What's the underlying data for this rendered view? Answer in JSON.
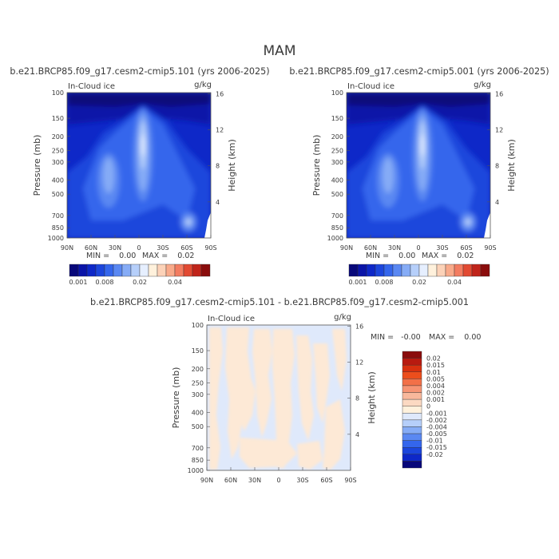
{
  "chart_data": {
    "title": "MAM",
    "panels": [
      {
        "id": "left",
        "type": "heatmap",
        "title": "b.e21.BRCP85.f09_g17.cesm2-cmip5.101 (yrs 2006-2025)",
        "variable": "In-Cloud ice",
        "units": "g/kg",
        "xlabel": "",
        "ylabel": "Pressure (mb)",
        "ylabel_right": "Height (km)",
        "x_ticks": [
          "90N",
          "60N",
          "30N",
          "0",
          "30S",
          "60S",
          "90S"
        ],
        "y_ticks": [
          "100",
          "150",
          "200",
          "250",
          "300",
          "400",
          "500",
          "700",
          "850",
          "1000"
        ],
        "y_right_ticks": [
          "16",
          "12",
          "8",
          "4"
        ],
        "min_text": "MIN =    0.00",
        "max_text": "MAX =    0.02",
        "colorbar_labels": [
          "0.001",
          "0.008",
          "0.02",
          "0.04"
        ]
      },
      {
        "id": "right",
        "type": "heatmap",
        "title": "b.e21.BRCP85.f09_g17.cesm2-cmip5.001 (yrs 2006-2025)",
        "variable": "In-Cloud ice",
        "units": "g/kg",
        "xlabel": "",
        "ylabel": "Pressure (mb)",
        "ylabel_right": "Height (km)",
        "x_ticks": [
          "90N",
          "60N",
          "30N",
          "0",
          "30S",
          "60S",
          "90S"
        ],
        "y_ticks": [
          "100",
          "150",
          "200",
          "250",
          "300",
          "400",
          "500",
          "700",
          "850",
          "1000"
        ],
        "y_right_ticks": [
          "16",
          "12",
          "8",
          "4"
        ],
        "min_text": "MIN =    0.00",
        "max_text": "MAX =    0.02",
        "colorbar_labels": [
          "0.001",
          "0.008",
          "0.02",
          "0.04"
        ]
      },
      {
        "id": "diff",
        "type": "heatmap",
        "title": "b.e21.BRCP85.f09_g17.cesm2-cmip5.101 - b.e21.BRCP85.f09_g17.cesm2-cmip5.001",
        "variable": "In-Cloud ice",
        "units": "g/kg",
        "xlabel": "",
        "ylabel": "Pressure (mb)",
        "ylabel_right": "Height (km)",
        "x_ticks": [
          "90N",
          "60N",
          "30N",
          "0",
          "30S",
          "60S",
          "90S"
        ],
        "y_ticks": [
          "100",
          "150",
          "200",
          "250",
          "300",
          "400",
          "500",
          "700",
          "850",
          "1000"
        ],
        "y_right_ticks": [
          "16",
          "12",
          "8",
          "4"
        ],
        "min_text": "MIN =   -0.00",
        "max_text": "MAX =    0.00",
        "colorbar_labels": [
          "0.02",
          "0.015",
          "0.01",
          "0.005",
          "0.004",
          "0.002",
          "0.001",
          "0",
          "-0.001",
          "-0.002",
          "-0.004",
          "-0.005",
          "-0.01",
          "-0.015",
          "-0.02"
        ]
      }
    ],
    "abs_colors": [
      "#08087a",
      "#0a14a8",
      "#0e28c8",
      "#1c46dc",
      "#3466ec",
      "#5a88f2",
      "#86acf6",
      "#b6cffa",
      "#e6efff",
      "#fff1dc",
      "#fcd2b8",
      "#f9aa8a",
      "#f37c60",
      "#e24a32",
      "#c0241a",
      "#8a0c0c"
    ],
    "diff_colors": [
      "#8a0c0c",
      "#b81a10",
      "#d8300f",
      "#ec4e1c",
      "#f27048",
      "#f69474",
      "#f8b89c",
      "#fcd9c2",
      "#fff1dc",
      "#dfe9fb",
      "#b6cffa",
      "#86acf6",
      "#5a88f2",
      "#3466ec",
      "#1c46dc",
      "#0e28c8",
      "#08087a"
    ]
  }
}
